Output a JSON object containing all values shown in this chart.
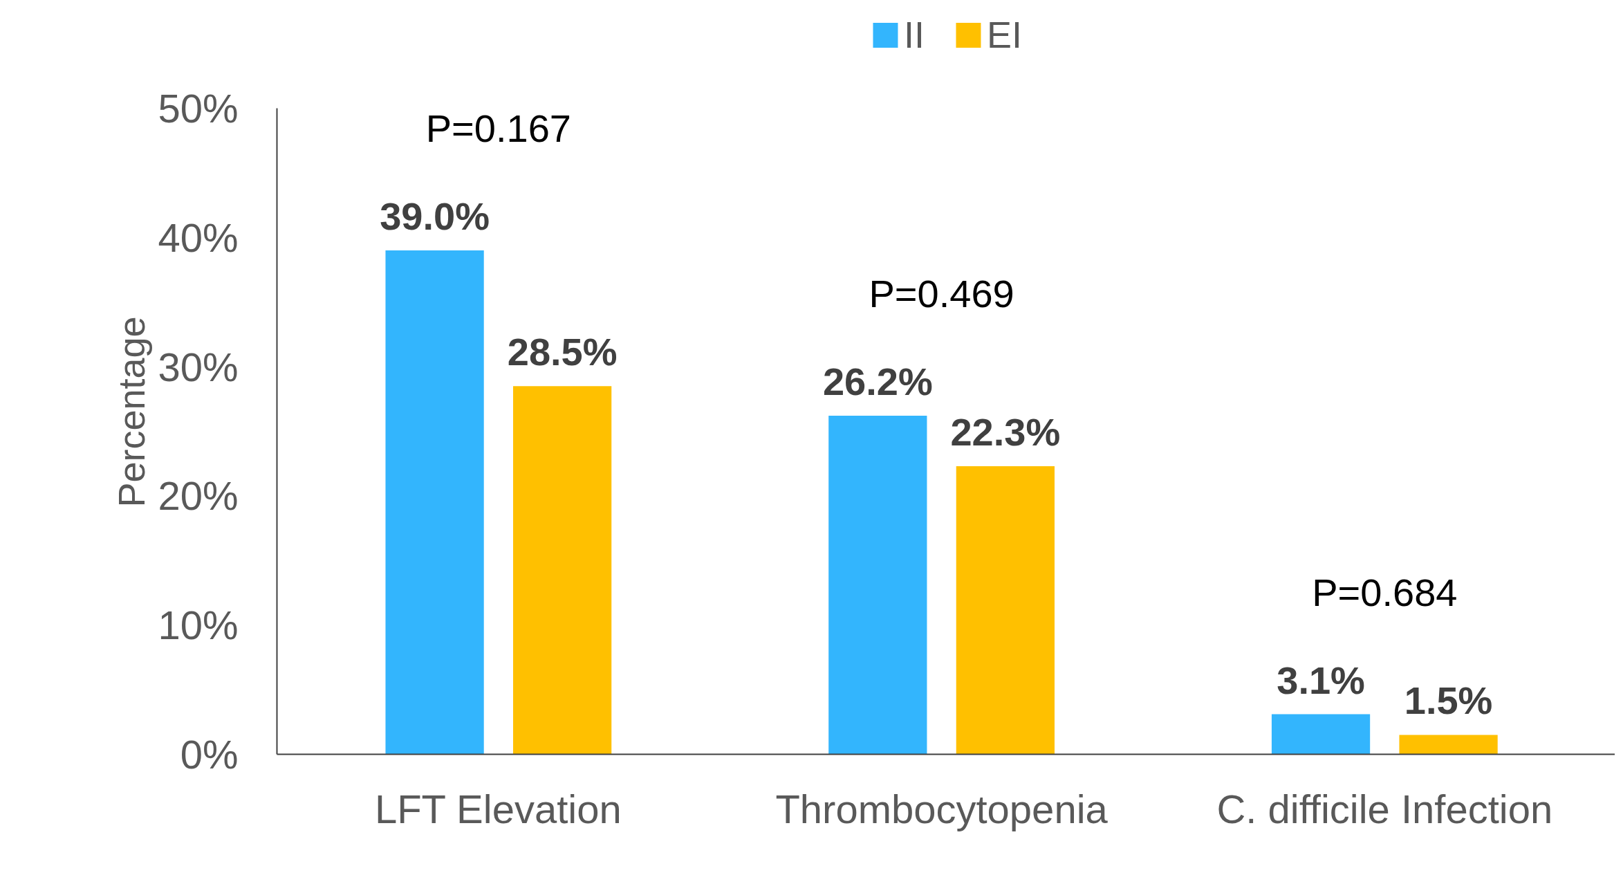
{
  "chart_data": {
    "type": "bar",
    "ylabel": "Percentage",
    "categories": [
      "LFT Elevation",
      "Thrombocytopenia",
      "C. difficile Infection"
    ],
    "series": [
      {
        "name": "II",
        "color": "#33b5fd",
        "values": [
          39.0,
          26.2,
          3.1
        ],
        "value_labels": [
          "39.0%",
          "26.2%",
          "3.1%"
        ]
      },
      {
        "name": "EI",
        "color": "#ffc000",
        "values": [
          28.5,
          22.3,
          1.5
        ],
        "value_labels": [
          "28.5%",
          "22.3%",
          "1.5%"
        ]
      }
    ],
    "ylim": [
      0,
      50
    ],
    "yticks": [
      {
        "value": 0,
        "label": "0%"
      },
      {
        "value": 10,
        "label": "10%"
      },
      {
        "value": 20,
        "label": "20%"
      },
      {
        "value": 30,
        "label": "30%"
      },
      {
        "value": 40,
        "label": "40%"
      },
      {
        "value": 50,
        "label": "50%"
      }
    ],
    "annotations": [
      "P=0.167",
      "P=0.469",
      "P=0.684"
    ],
    "grid": false,
    "legend": "top"
  }
}
